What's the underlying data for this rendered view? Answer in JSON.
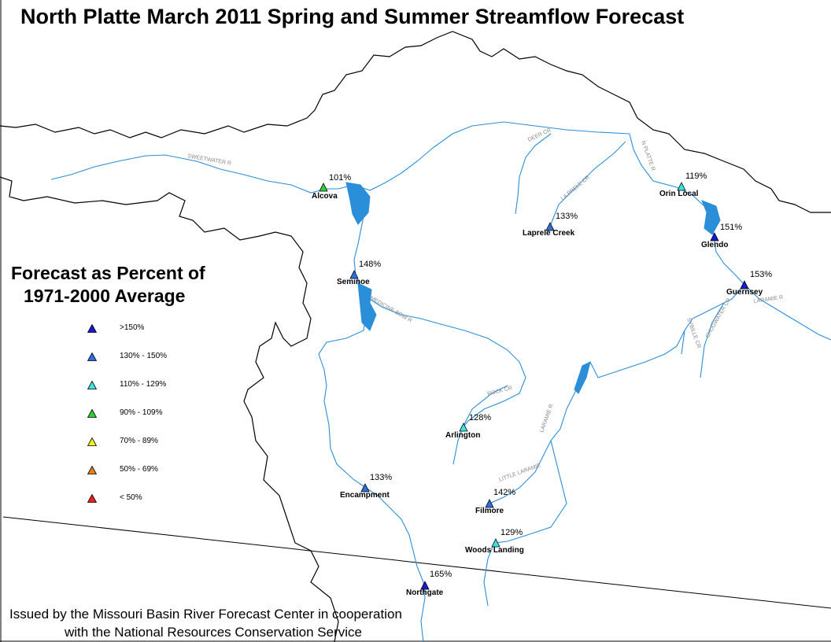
{
  "title": "North Platte March 2011 Spring and Summer Streamflow Forecast",
  "legend": {
    "title_line1": "Forecast as Percent of",
    "title_line2": "1971-2000 Average",
    "items": [
      {
        "label": ">150%",
        "color": "#1a1acc"
      },
      {
        "label": "130% - 150%",
        "color": "#2e6fe0"
      },
      {
        "label": "110% - 129%",
        "color": "#40e0e0"
      },
      {
        "label": "90% - 109%",
        "color": "#33cc33"
      },
      {
        "label": "70% - 89%",
        "color": "#f0f020"
      },
      {
        "label": "50% - 69%",
        "color": "#e08020"
      },
      {
        "label": "< 50%",
        "color": "#e82020"
      }
    ]
  },
  "stations": [
    {
      "name": "Alcova",
      "percent": "101%",
      "color": "#33cc33"
    },
    {
      "name": "Seminoe",
      "percent": "148%",
      "color": "#2e6fe0"
    },
    {
      "name": "Laprele Creek",
      "percent": "133%",
      "color": "#2e6fe0"
    },
    {
      "name": "Orin Local",
      "percent": "119%",
      "color": "#40e0e0"
    },
    {
      "name": "Glendo",
      "percent": "151%",
      "color": "#1a1acc"
    },
    {
      "name": "Guernsey",
      "percent": "153%",
      "color": "#1a1acc"
    },
    {
      "name": "Arlington",
      "percent": "128%",
      "color": "#40e0e0"
    },
    {
      "name": "Encampment",
      "percent": "133%",
      "color": "#2e6fe0"
    },
    {
      "name": "Filmore",
      "percent": "142%",
      "color": "#2e6fe0"
    },
    {
      "name": "Woods Landing",
      "percent": "129%",
      "color": "#40e0e0"
    },
    {
      "name": "Northgate",
      "percent": "165%",
      "color": "#1a1acc"
    }
  ],
  "rivers": [
    "SWEETWATER R",
    "DEER CR",
    "LA PRELE CR",
    "N PLATTE R",
    "LARAMIE R",
    "SYBILLE CR",
    "CHUGWATER CR",
    "ROCK CR",
    "LITTLE LARAMIE",
    "MEDICINE BOW R"
  ],
  "colors": {
    "river": "#2a8ed8",
    "reservoir": "#2a8ed8",
    "boundary": "#000000"
  },
  "issued_line1": "Issued by the Missouri Basin River Forecast Center in cooperation",
  "issued_line2": "with the National Resources Conservation Service"
}
